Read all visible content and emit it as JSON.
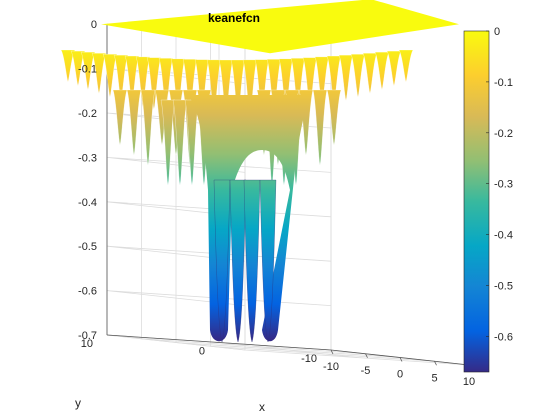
{
  "chart_data": {
    "type": "surface",
    "title": "keanefcn",
    "xlabel": "x",
    "ylabel": "y",
    "zlabel": "",
    "xlim": [
      -10,
      10
    ],
    "ylim": [
      -10,
      10
    ],
    "zlim": [
      -0.7,
      0
    ],
    "x_ticks": [
      "-10",
      "-5",
      "0",
      "5",
      "10"
    ],
    "y_ticks": [
      "-10",
      "0",
      "10"
    ],
    "z_ticks": [
      "0",
      "-0.1",
      "-0.2",
      "-0.3",
      "-0.4",
      "-0.5",
      "-0.6",
      "-0.7"
    ],
    "colorbar": {
      "colormap": "parula",
      "limits": [
        -0.67,
        0
      ],
      "ticks": [
        "0",
        "-0.1",
        "-0.2",
        "-0.3",
        "-0.4",
        "-0.5",
        "-0.6"
      ]
    },
    "grid": true,
    "surface_minimum": -0.67,
    "surface_plateau": 0
  }
}
